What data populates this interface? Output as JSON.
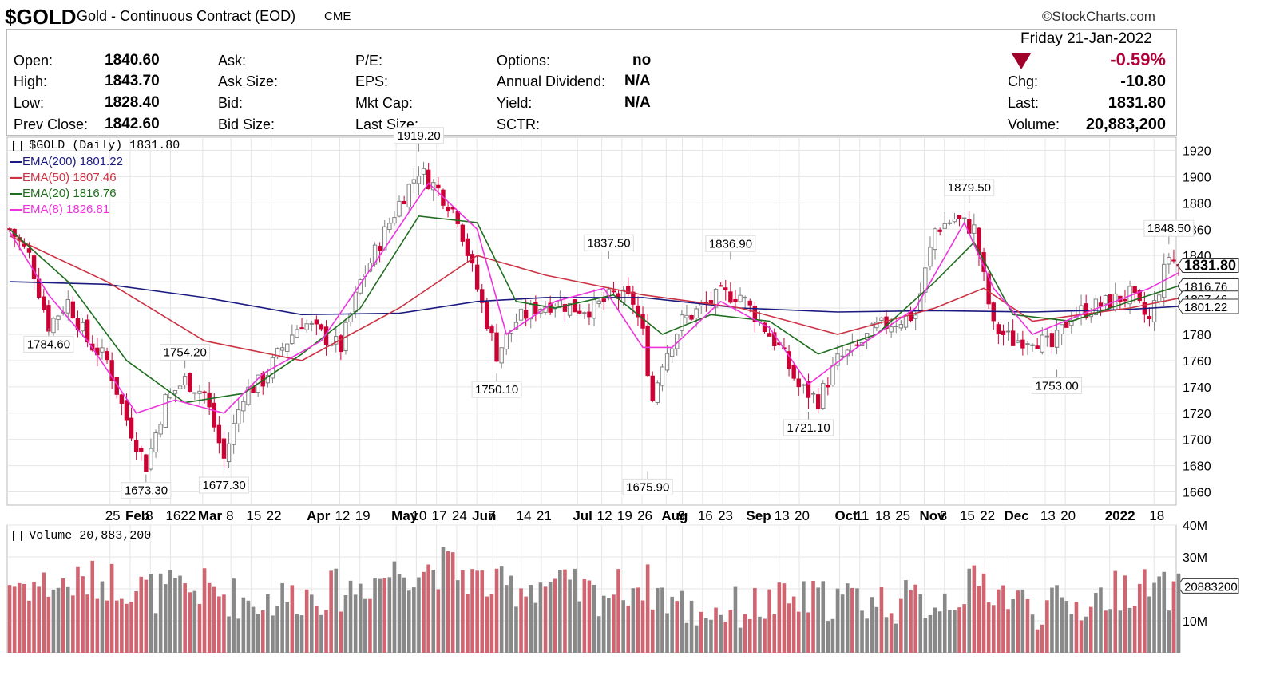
{
  "header": {
    "symbol": "$GOLD",
    "name": "Gold - Continuous Contract (EOD)",
    "exchange": "CME",
    "copyright": "©StockCharts.com",
    "date": "Friday  21-Jan-2022"
  },
  "quote": {
    "col1": [
      {
        "label": "Open:",
        "value": "1840.60"
      },
      {
        "label": "High:",
        "value": "1843.70"
      },
      {
        "label": "Low:",
        "value": "1828.40"
      },
      {
        "label": "Prev Close:",
        "value": "1842.60"
      }
    ],
    "col2": [
      "Ask:",
      "Ask Size:",
      "Bid:",
      "Bid Size:"
    ],
    "col3": [
      "P/E:",
      "EPS:",
      "Mkt Cap:",
      "Last Size:"
    ],
    "col4": [
      {
        "label": "Options:",
        "value": "no"
      },
      {
        "label": "Annual Dividend:",
        "value": "N/A"
      },
      {
        "label": "Yield:",
        "value": "N/A"
      },
      {
        "label": "SCTR:",
        "value": ""
      }
    ],
    "change_pct": "-0.59%",
    "right": [
      {
        "label": "Chg:",
        "value": "-10.80"
      },
      {
        "label": "Last:",
        "value": "1831.80"
      },
      {
        "label": "Volume:",
        "value": "20,883,200"
      }
    ],
    "down_color": "#a0002a"
  },
  "legend": {
    "main": "$GOLD (Daily) 1831.80",
    "ema200": "EMA(200) 1801.22",
    "ema50": "EMA(50) 1807.46",
    "ema20": "EMA(20) 1816.76",
    "ema8": "EMA(8) 1826.81",
    "volume": "Volume 20,883,200"
  },
  "colors": {
    "up": "#808080",
    "down": "#cc0033",
    "ema200": "#1a1a80",
    "ema50": "#cc3344",
    "ema20": "#1f6e1f",
    "ema8": "#ee33dd",
    "vol_up": "#888888",
    "vol_down": "#d06470",
    "grid": "#e6e6e6"
  },
  "chart_data": {
    "type": "candlestick",
    "price_axis": {
      "ticks": [
        1660,
        1680,
        1700,
        1720,
        1740,
        1760,
        1780,
        1800,
        1820,
        1840,
        1860,
        1880,
        1900,
        1920
      ],
      "range": [
        1650,
        1930
      ]
    },
    "volume_axis": {
      "ticks": [
        "10M",
        "20M",
        "30M",
        "40M"
      ],
      "range": [
        0,
        40000000
      ]
    },
    "last_price": "1831.80",
    "ema_tags": [
      "1816.76",
      "1807.46",
      "1801.22"
    ],
    "last_volume_tag": "20883200",
    "month_labels": [
      {
        "day": 25,
        "text": "25"
      },
      {
        "day": 30,
        "text": "Feb"
      },
      {
        "day": 35,
        "text": "8"
      },
      {
        "day": 40,
        "text": "1622"
      },
      {
        "day": 48,
        "text": "Mar"
      },
      {
        "day": 55,
        "text": "8"
      },
      {
        "day": 60,
        "text": "15"
      },
      {
        "day": 65,
        "text": "22"
      },
      {
        "day": 75,
        "text": "Apr"
      },
      {
        "day": 82,
        "text": "12"
      },
      {
        "day": 87,
        "text": "19"
      },
      {
        "day": 96,
        "text": "May"
      },
      {
        "day": 101,
        "text": "10"
      },
      {
        "day": 106,
        "text": "17"
      },
      {
        "day": 111,
        "text": "24"
      },
      {
        "day": 116,
        "text": "Jun"
      },
      {
        "day": 120,
        "text": "7"
      },
      {
        "day": 127,
        "text": "14"
      },
      {
        "day": 132,
        "text": "21"
      },
      {
        "day": 141,
        "text": "Jul"
      },
      {
        "day": 147,
        "text": "12"
      },
      {
        "day": 152,
        "text": "19"
      },
      {
        "day": 157,
        "text": "26"
      },
      {
        "day": 163,
        "text": "Aug"
      },
      {
        "day": 167,
        "text": "9"
      },
      {
        "day": 172,
        "text": "16"
      },
      {
        "day": 177,
        "text": "23"
      },
      {
        "day": 184,
        "text": "Sep"
      },
      {
        "day": 191,
        "text": "13"
      },
      {
        "day": 196,
        "text": "20"
      },
      {
        "day": 206,
        "text": "Oct"
      },
      {
        "day": 211,
        "text": "11"
      },
      {
        "day": 216,
        "text": "18"
      },
      {
        "day": 221,
        "text": "25"
      },
      {
        "day": 227,
        "text": "Nov"
      },
      {
        "day": 232,
        "text": "8"
      },
      {
        "day": 237,
        "text": "15"
      },
      {
        "day": 242,
        "text": "22"
      },
      {
        "day": 248,
        "text": "Dec"
      },
      {
        "day": 257,
        "text": "13"
      },
      {
        "day": 262,
        "text": "20"
      },
      {
        "day": 273,
        "text": "2022"
      },
      {
        "day": 284,
        "text": "18"
      }
    ],
    "annotations": [
      {
        "day": 8,
        "price": 1784.6,
        "text": "1784.60",
        "pos": "below"
      },
      {
        "day": 28,
        "price": 1673.3,
        "text": "1673.30",
        "pos": "below"
      },
      {
        "day": 36,
        "price": 1754.2,
        "text": "1754.20",
        "pos": "above"
      },
      {
        "day": 44,
        "price": 1677.3,
        "text": "1677.30",
        "pos": "below"
      },
      {
        "day": 84,
        "price": 1919.2,
        "text": "1919.20",
        "pos": "above"
      },
      {
        "day": 100,
        "price": 1750.1,
        "text": "1750.10",
        "pos": "below"
      },
      {
        "day": 123,
        "price": 1837.5,
        "text": "1837.50",
        "pos": "above"
      },
      {
        "day": 131,
        "price": 1675.9,
        "text": "1675.90",
        "pos": "below"
      },
      {
        "day": 148,
        "price": 1836.9,
        "text": "1836.90",
        "pos": "above"
      },
      {
        "day": 164,
        "price": 1721.1,
        "text": "1721.10",
        "pos": "below"
      },
      {
        "day": 197,
        "price": 1879.5,
        "text": "1879.50",
        "pos": "above"
      },
      {
        "day": 215,
        "price": 1753.0,
        "text": "1753.00",
        "pos": "below"
      },
      {
        "day": 238,
        "price": 1848.5,
        "text": "1848.50",
        "pos": "above"
      }
    ],
    "close_path": [
      [
        0,
        1860
      ],
      [
        4,
        1840
      ],
      [
        8,
        1787
      ],
      [
        12,
        1805
      ],
      [
        16,
        1775
      ],
      [
        20,
        1760
      ],
      [
        24,
        1715
      ],
      [
        28,
        1680
      ],
      [
        32,
        1730
      ],
      [
        36,
        1745
      ],
      [
        40,
        1735
      ],
      [
        44,
        1685
      ],
      [
        48,
        1735
      ],
      [
        52,
        1745
      ],
      [
        56,
        1770
      ],
      [
        60,
        1790
      ],
      [
        64,
        1780
      ],
      [
        68,
        1770
      ],
      [
        72,
        1820
      ],
      [
        76,
        1850
      ],
      [
        80,
        1880
      ],
      [
        84,
        1905
      ],
      [
        88,
        1890
      ],
      [
        92,
        1870
      ],
      [
        96,
        1815
      ],
      [
        100,
        1765
      ],
      [
        104,
        1790
      ],
      [
        108,
        1800
      ],
      [
        112,
        1805
      ],
      [
        116,
        1800
      ],
      [
        120,
        1800
      ],
      [
        124,
        1810
      ],
      [
        128,
        1805
      ],
      [
        130,
        1780
      ],
      [
        132,
        1730
      ],
      [
        134,
        1760
      ],
      [
        138,
        1790
      ],
      [
        142,
        1800
      ],
      [
        146,
        1810
      ],
      [
        150,
        1810
      ],
      [
        154,
        1790
      ],
      [
        158,
        1770
      ],
      [
        162,
        1740
      ],
      [
        166,
        1730
      ],
      [
        170,
        1760
      ],
      [
        174,
        1770
      ],
      [
        178,
        1785
      ],
      [
        182,
        1790
      ],
      [
        186,
        1795
      ],
      [
        190,
        1860
      ],
      [
        194,
        1868
      ],
      [
        198,
        1860
      ],
      [
        202,
        1785
      ],
      [
        206,
        1775
      ],
      [
        210,
        1778
      ],
      [
        214,
        1770
      ],
      [
        218,
        1795
      ],
      [
        222,
        1800
      ],
      [
        226,
        1805
      ],
      [
        230,
        1810
      ],
      [
        234,
        1790
      ],
      [
        238,
        1840
      ],
      [
        240,
        1832
      ]
    ],
    "ema200_path": [
      [
        0,
        1820
      ],
      [
        20,
        1818
      ],
      [
        40,
        1808
      ],
      [
        60,
        1795
      ],
      [
        80,
        1796
      ],
      [
        96,
        1805
      ],
      [
        110,
        1808
      ],
      [
        130,
        1808
      ],
      [
        150,
        1800
      ],
      [
        170,
        1797
      ],
      [
        190,
        1798
      ],
      [
        210,
        1797
      ],
      [
        230,
        1799
      ],
      [
        240,
        1801.22
      ]
    ],
    "ema50_path": [
      [
        0,
        1855
      ],
      [
        20,
        1820
      ],
      [
        40,
        1775
      ],
      [
        60,
        1760
      ],
      [
        80,
        1800
      ],
      [
        96,
        1840
      ],
      [
        110,
        1825
      ],
      [
        130,
        1810
      ],
      [
        150,
        1800
      ],
      [
        170,
        1780
      ],
      [
        190,
        1800
      ],
      [
        200,
        1815
      ],
      [
        210,
        1790
      ],
      [
        230,
        1800
      ],
      [
        240,
        1807.46
      ]
    ],
    "ema20_path": [
      [
        0,
        1860
      ],
      [
        12,
        1820
      ],
      [
        24,
        1760
      ],
      [
        36,
        1728
      ],
      [
        48,
        1735
      ],
      [
        60,
        1765
      ],
      [
        72,
        1800
      ],
      [
        84,
        1870
      ],
      [
        96,
        1865
      ],
      [
        104,
        1805
      ],
      [
        112,
        1800
      ],
      [
        124,
        1810
      ],
      [
        134,
        1780
      ],
      [
        144,
        1795
      ],
      [
        156,
        1790
      ],
      [
        166,
        1765
      ],
      [
        178,
        1780
      ],
      [
        190,
        1820
      ],
      [
        198,
        1850
      ],
      [
        206,
        1795
      ],
      [
        218,
        1790
      ],
      [
        230,
        1805
      ],
      [
        240,
        1816.76
      ]
    ],
    "ema8_path": [
      [
        0,
        1858
      ],
      [
        8,
        1810
      ],
      [
        16,
        1775
      ],
      [
        26,
        1720
      ],
      [
        34,
        1730
      ],
      [
        44,
        1720
      ],
      [
        52,
        1750
      ],
      [
        64,
        1775
      ],
      [
        76,
        1840
      ],
      [
        86,
        1895
      ],
      [
        96,
        1860
      ],
      [
        102,
        1780
      ],
      [
        112,
        1805
      ],
      [
        122,
        1815
      ],
      [
        130,
        1770
      ],
      [
        136,
        1770
      ],
      [
        146,
        1805
      ],
      [
        156,
        1785
      ],
      [
        164,
        1742
      ],
      [
        174,
        1770
      ],
      [
        186,
        1800
      ],
      [
        196,
        1865
      ],
      [
        202,
        1815
      ],
      [
        210,
        1780
      ],
      [
        222,
        1798
      ],
      [
        234,
        1815
      ],
      [
        240,
        1826.81
      ]
    ],
    "volume_levels": [
      [
        0,
        22
      ],
      [
        10,
        21
      ],
      [
        20,
        23
      ],
      [
        30,
        19
      ],
      [
        40,
        20
      ],
      [
        50,
        16
      ],
      [
        60,
        18
      ],
      [
        70,
        20
      ],
      [
        80,
        26
      ],
      [
        90,
        27
      ],
      [
        100,
        20
      ],
      [
        110,
        22
      ],
      [
        120,
        18
      ],
      [
        130,
        22
      ],
      [
        140,
        13
      ],
      [
        150,
        14
      ],
      [
        160,
        16
      ],
      [
        170,
        17
      ],
      [
        180,
        16
      ],
      [
        190,
        16
      ],
      [
        200,
        22
      ],
      [
        210,
        14
      ],
      [
        220,
        15
      ],
      [
        230,
        21
      ],
      [
        240,
        18
      ]
    ]
  }
}
